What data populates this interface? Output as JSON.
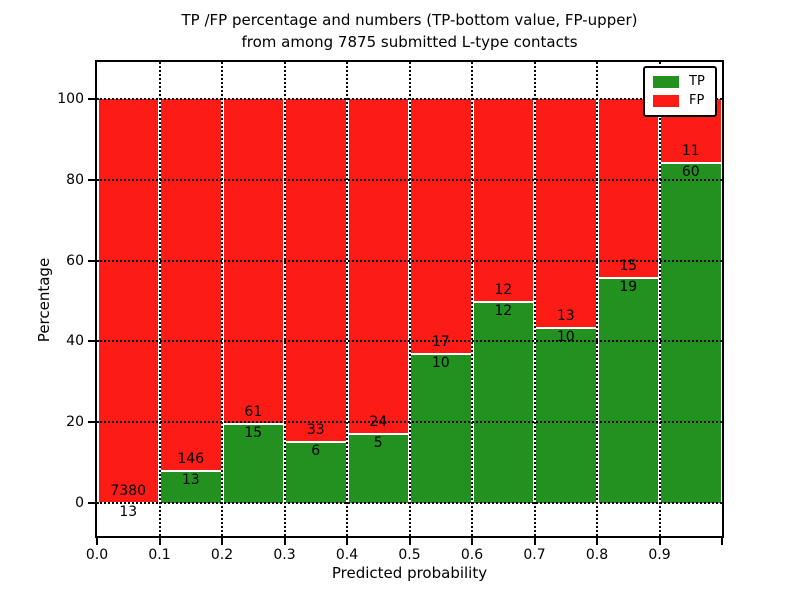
{
  "figure": {
    "title_line1": "TP /FP percentage and numbers (TP-bottom value, FP-upper)",
    "title_line2": "from among 7875 submitted L-type contacts",
    "xlabel": "Predicted probability",
    "ylabel": "Percentage"
  },
  "legend": {
    "items": [
      {
        "label": "TP",
        "color": "#229120"
      },
      {
        "label": "FP",
        "color": "#fc1b15"
      }
    ]
  },
  "chart_data": {
    "type": "bar",
    "stacked": true,
    "normalized_to_percent": true,
    "title": "TP /FP percentage and numbers (TP-bottom value, FP-upper) from among 7875 submitted L-type contacts",
    "xlabel": "Predicted probability",
    "ylabel": "Percentage",
    "total_contacts": 7875,
    "x_bins": [
      0.0,
      0.1,
      0.2,
      0.3,
      0.4,
      0.5,
      0.6,
      0.7,
      0.8,
      0.9,
      1.0
    ],
    "x_tick_labels": [
      "0.0",
      "0.1",
      "0.2",
      "0.3",
      "0.4",
      "0.5",
      "0.6",
      "0.7",
      "0.8",
      "0.9"
    ],
    "y_tick_values": [
      0,
      20,
      40,
      60,
      80,
      100
    ],
    "y_tick_labels": [
      "0",
      "20",
      "40",
      "60",
      "80",
      "100"
    ],
    "xlim": [
      0.0,
      1.0
    ],
    "ylim": [
      -8.2,
      109.2
    ],
    "grid": true,
    "legend_position": "upper right",
    "series": [
      {
        "name": "TP",
        "color": "#229120",
        "position": "bottom",
        "values": [
          13,
          13,
          15,
          6,
          5,
          10,
          12,
          10,
          19,
          60
        ]
      },
      {
        "name": "FP",
        "color": "#fc1b15",
        "position": "top",
        "values": [
          7380,
          146,
          61,
          33,
          24,
          17,
          12,
          13,
          15,
          11
        ]
      }
    ],
    "tp_percent_of_bin": [
      0.18,
      8.18,
      19.74,
      15.38,
      17.24,
      37.04,
      50.0,
      43.48,
      55.88,
      84.51
    ]
  }
}
